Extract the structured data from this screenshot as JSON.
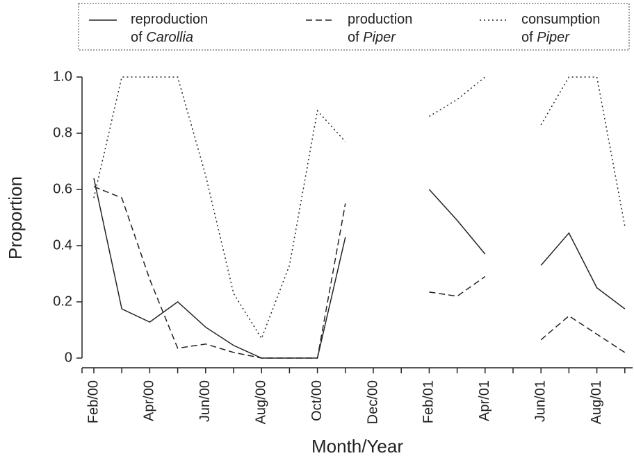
{
  "chart_data": {
    "type": "line",
    "x_label": "Month/Year",
    "y_label": "Proportion",
    "categories": [
      "Feb/00",
      null,
      "Apr/00",
      null,
      "Jun/00",
      null,
      "Aug/00",
      null,
      "Oct/00",
      null,
      "Dec/00",
      null,
      "Feb/01",
      null,
      "Apr/01",
      null,
      "Jun/01",
      null,
      "Aug/01",
      null
    ],
    "series": [
      {
        "name": "reproduction of Carollia",
        "color": "#222222",
        "linestyle": "solid",
        "values": [
          0.64,
          0.175,
          0.128,
          0.2,
          0.11,
          0.045,
          0,
          0,
          0,
          0.43,
          null,
          null,
          0.6,
          0.49,
          0.37,
          null,
          0.33,
          0.445,
          0.25,
          0.175
        ]
      },
      {
        "name": "production of Piper",
        "color": "#222222",
        "linestyle": "dashed",
        "values": [
          0.61,
          0.57,
          0.28,
          0.035,
          0.05,
          0.02,
          0,
          0,
          0,
          0.55,
          null,
          null,
          0.235,
          0.22,
          0.29,
          null,
          0.065,
          0.15,
          0.085,
          0.02
        ]
      },
      {
        "name": "consumption of Piper",
        "color": "#222222",
        "linestyle": "dotted",
        "values": [
          0.57,
          1.0,
          1.0,
          1.0,
          0.65,
          0.23,
          0.07,
          0.33,
          0.88,
          0.77,
          null,
          null,
          0.86,
          0.92,
          1.0,
          null,
          0.83,
          1.0,
          1.0,
          0.47
        ]
      }
    ],
    "ylim": [
      0,
      1
    ],
    "yticks": [
      0,
      0.2,
      0.4,
      0.6,
      0.8,
      {
        "value": 1,
        "label": "1.0"
      }
    ],
    "legend": "top"
  }
}
